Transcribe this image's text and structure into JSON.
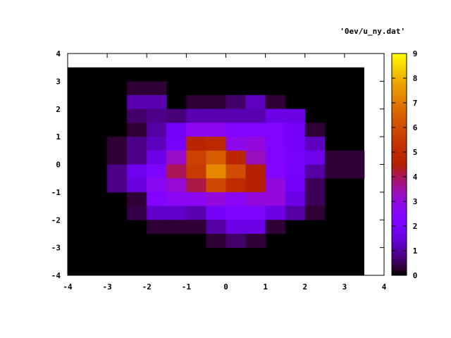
{
  "chart_data": {
    "type": "heatmap",
    "title": "'0ev/u_ny.dat'",
    "xlabel": "",
    "ylabel": "",
    "xlim": [
      -4,
      4
    ],
    "ylim": [
      -4,
      4
    ],
    "x_ticks": [
      -4,
      -3,
      -2,
      -1,
      0,
      1,
      2,
      3,
      4
    ],
    "y_ticks": [
      -4,
      -3,
      -2,
      -1,
      0,
      1,
      2,
      3,
      4
    ],
    "x_tick_labels": [
      "-4",
      "-3",
      "-2",
      "-1",
      "0",
      "1",
      "2",
      "3",
      "4"
    ],
    "y_tick_labels": [
      "-4",
      "-3",
      "-2",
      "-1",
      "0",
      "1",
      "2",
      "3",
      "4"
    ],
    "grid": false,
    "data_extent": {
      "x": [
        -4,
        3.5
      ],
      "y": [
        -4,
        3.5
      ]
    },
    "cell_size": 0.5,
    "colorbar": {
      "min": 0,
      "max": 9,
      "ticks": [
        0,
        1,
        2,
        3,
        4,
        5,
        6,
        7,
        8,
        9
      ],
      "tick_labels": [
        "0",
        "1",
        "2",
        "3",
        "4",
        "5",
        "6",
        "7",
        "8",
        "9"
      ],
      "palette": "black-blue-red-yellow"
    },
    "cells": [
      {
        "x": -2.5,
        "y": 2.5,
        "v": 0.3
      },
      {
        "x": -2.0,
        "y": 2.5,
        "v": 0.3
      },
      {
        "x": -2.5,
        "y": 2.0,
        "v": 1.1
      },
      {
        "x": -2.0,
        "y": 2.0,
        "v": 1.1
      },
      {
        "x": -1.0,
        "y": 2.0,
        "v": 0.3
      },
      {
        "x": -0.5,
        "y": 2.0,
        "v": 0.3
      },
      {
        "x": 0.0,
        "y": 2.0,
        "v": 0.6
      },
      {
        "x": 0.5,
        "y": 2.0,
        "v": 1.2
      },
      {
        "x": 1.0,
        "y": 2.0,
        "v": 0.3
      },
      {
        "x": -2.5,
        "y": 1.5,
        "v": 0.6
      },
      {
        "x": -2.0,
        "y": 1.5,
        "v": 0.8
      },
      {
        "x": -1.5,
        "y": 1.5,
        "v": 0.7
      },
      {
        "x": -1.0,
        "y": 1.5,
        "v": 1.1
      },
      {
        "x": -0.5,
        "y": 1.5,
        "v": 1.1
      },
      {
        "x": 0.0,
        "y": 1.5,
        "v": 1.1
      },
      {
        "x": 0.5,
        "y": 1.5,
        "v": 1.1
      },
      {
        "x": 1.0,
        "y": 1.5,
        "v": 1.6
      },
      {
        "x": 1.5,
        "y": 1.5,
        "v": 1.6
      },
      {
        "x": -2.5,
        "y": 1.0,
        "v": 0.3
      },
      {
        "x": -2.0,
        "y": 1.0,
        "v": 1.0
      },
      {
        "x": -1.5,
        "y": 1.0,
        "v": 1.9
      },
      {
        "x": -1.0,
        "y": 1.0,
        "v": 2.7
      },
      {
        "x": -0.5,
        "y": 1.0,
        "v": 2.7
      },
      {
        "x": 0.0,
        "y": 1.0,
        "v": 2.3
      },
      {
        "x": 0.5,
        "y": 1.0,
        "v": 2.3
      },
      {
        "x": 1.0,
        "y": 1.0,
        "v": 2.3
      },
      {
        "x": 1.5,
        "y": 1.0,
        "v": 1.9
      },
      {
        "x": 2.0,
        "y": 1.0,
        "v": 0.3
      },
      {
        "x": -3.0,
        "y": 0.5,
        "v": 0.3
      },
      {
        "x": -2.5,
        "y": 0.5,
        "v": 0.8
      },
      {
        "x": -2.0,
        "y": 0.5,
        "v": 1.2
      },
      {
        "x": -1.5,
        "y": 0.5,
        "v": 2.0
      },
      {
        "x": -1.0,
        "y": 0.5,
        "v": 4.7
      },
      {
        "x": -0.5,
        "y": 0.5,
        "v": 4.9
      },
      {
        "x": 0.0,
        "y": 0.5,
        "v": 2.8
      },
      {
        "x": 0.5,
        "y": 0.5,
        "v": 3.0
      },
      {
        "x": 1.0,
        "y": 0.5,
        "v": 2.3
      },
      {
        "x": 1.5,
        "y": 0.5,
        "v": 1.9
      },
      {
        "x": 2.0,
        "y": 0.5,
        "v": 1.2
      },
      {
        "x": -3.0,
        "y": 0.0,
        "v": 0.3
      },
      {
        "x": -2.5,
        "y": 0.0,
        "v": 0.8
      },
      {
        "x": -2.0,
        "y": 0.0,
        "v": 1.6
      },
      {
        "x": -1.5,
        "y": 0.0,
        "v": 3.2
      },
      {
        "x": -1.0,
        "y": 0.0,
        "v": 5.7
      },
      {
        "x": -0.5,
        "y": 0.0,
        "v": 6.4
      },
      {
        "x": 0.0,
        "y": 0.0,
        "v": 4.8
      },
      {
        "x": 0.5,
        "y": 0.0,
        "v": 3.3
      },
      {
        "x": 1.0,
        "y": 0.0,
        "v": 2.3
      },
      {
        "x": 1.5,
        "y": 0.0,
        "v": 2.0
      },
      {
        "x": 2.0,
        "y": 0.0,
        "v": 1.7
      },
      {
        "x": 2.5,
        "y": 0.0,
        "v": 0.3
      },
      {
        "x": 3.0,
        "y": 0.0,
        "v": 0.3
      },
      {
        "x": -3.0,
        "y": -0.5,
        "v": 0.8
      },
      {
        "x": -2.5,
        "y": -0.5,
        "v": 1.7
      },
      {
        "x": -2.0,
        "y": -0.5,
        "v": 2.2
      },
      {
        "x": -1.5,
        "y": -0.5,
        "v": 4.0
      },
      {
        "x": -1.0,
        "y": -0.5,
        "v": 5.5
      },
      {
        "x": -0.5,
        "y": -0.5,
        "v": 7.3
      },
      {
        "x": 0.0,
        "y": -0.5,
        "v": 6.0
      },
      {
        "x": 0.5,
        "y": -0.5,
        "v": 4.5
      },
      {
        "x": 1.0,
        "y": -0.5,
        "v": 2.4
      },
      {
        "x": 1.5,
        "y": -0.5,
        "v": 2.0
      },
      {
        "x": 2.0,
        "y": -0.5,
        "v": 1.0
      },
      {
        "x": 2.5,
        "y": -0.5,
        "v": 0.3
      },
      {
        "x": 3.0,
        "y": -0.5,
        "v": 0.3
      },
      {
        "x": -3.0,
        "y": -1.0,
        "v": 0.8
      },
      {
        "x": -2.5,
        "y": -1.0,
        "v": 1.5
      },
      {
        "x": -2.0,
        "y": -1.0,
        "v": 2.7
      },
      {
        "x": -1.5,
        "y": -1.0,
        "v": 3.1
      },
      {
        "x": -1.0,
        "y": -1.0,
        "v": 4.1
      },
      {
        "x": -0.5,
        "y": -1.0,
        "v": 5.9
      },
      {
        "x": 0.0,
        "y": -1.0,
        "v": 5.0
      },
      {
        "x": 0.5,
        "y": -1.0,
        "v": 4.6
      },
      {
        "x": 1.0,
        "y": -1.0,
        "v": 3.0
      },
      {
        "x": 1.5,
        "y": -1.0,
        "v": 1.9
      },
      {
        "x": 2.0,
        "y": -1.0,
        "v": 0.5
      },
      {
        "x": -2.5,
        "y": -1.5,
        "v": 0.3
      },
      {
        "x": -2.0,
        "y": -1.5,
        "v": 2.3
      },
      {
        "x": -1.5,
        "y": -1.5,
        "v": 2.7
      },
      {
        "x": -1.0,
        "y": -1.5,
        "v": 2.7
      },
      {
        "x": -0.5,
        "y": -1.5,
        "v": 3.0
      },
      {
        "x": 0.0,
        "y": -1.5,
        "v": 2.6
      },
      {
        "x": 0.5,
        "y": -1.5,
        "v": 3.0
      },
      {
        "x": 1.0,
        "y": -1.5,
        "v": 3.0
      },
      {
        "x": 1.5,
        "y": -1.5,
        "v": 1.6
      },
      {
        "x": 2.0,
        "y": -1.5,
        "v": 0.5
      },
      {
        "x": -2.5,
        "y": -2.0,
        "v": 0.4
      },
      {
        "x": -2.0,
        "y": -2.0,
        "v": 1.3
      },
      {
        "x": -1.5,
        "y": -2.0,
        "v": 1.3
      },
      {
        "x": -1.0,
        "y": -2.0,
        "v": 1.1
      },
      {
        "x": -0.5,
        "y": -2.0,
        "v": 1.9
      },
      {
        "x": 0.0,
        "y": -2.0,
        "v": 2.2
      },
      {
        "x": 0.5,
        "y": -2.0,
        "v": 2.2
      },
      {
        "x": 1.0,
        "y": -2.0,
        "v": 1.6
      },
      {
        "x": 1.5,
        "y": -2.0,
        "v": 1.0
      },
      {
        "x": 2.0,
        "y": -2.0,
        "v": 0.3
      },
      {
        "x": -2.0,
        "y": -2.5,
        "v": 0.3
      },
      {
        "x": -1.5,
        "y": -2.5,
        "v": 0.3
      },
      {
        "x": -1.0,
        "y": -2.5,
        "v": 0.3
      },
      {
        "x": -0.5,
        "y": -2.5,
        "v": 1.0
      },
      {
        "x": 0.0,
        "y": -2.5,
        "v": 1.6
      },
      {
        "x": 0.5,
        "y": -2.5,
        "v": 1.6
      },
      {
        "x": 1.0,
        "y": -2.5,
        "v": 0.3
      },
      {
        "x": -0.5,
        "y": -3.0,
        "v": 0.3
      },
      {
        "x": 0.0,
        "y": -3.0,
        "v": 0.6
      },
      {
        "x": 0.5,
        "y": -3.0,
        "v": 0.3
      }
    ]
  }
}
